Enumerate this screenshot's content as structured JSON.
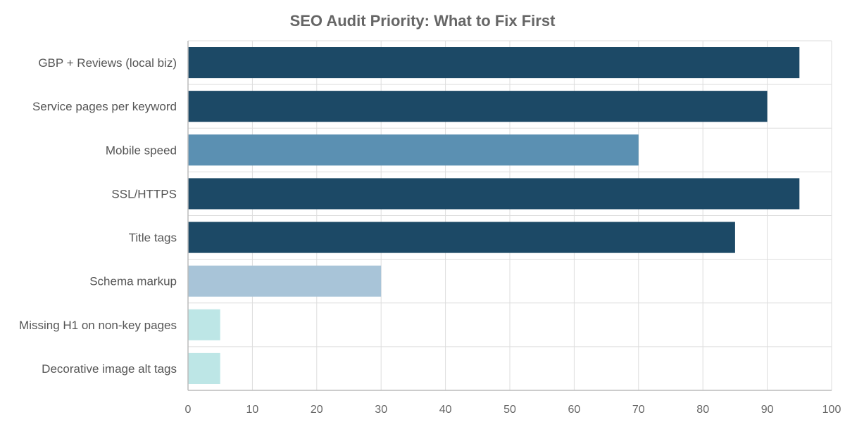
{
  "chart_data": {
    "type": "bar",
    "orientation": "horizontal",
    "title": "SEO Audit Priority: What to Fix First",
    "xlabel": "",
    "ylabel": "",
    "xlim": [
      0,
      100
    ],
    "x_ticks": [
      "0",
      "10",
      "20",
      "30",
      "40",
      "50",
      "60",
      "70",
      "80",
      "90",
      "100"
    ],
    "grid": true,
    "legend": "none",
    "categories": [
      "GBP + Reviews (local biz)",
      "Service pages per keyword",
      "Mobile speed",
      "SSL/HTTPS",
      "Title tags",
      "Schema markup",
      "Missing H1 on non-key pages",
      "Decorative image alt tags"
    ],
    "values": [
      95,
      90,
      70,
      95,
      85,
      30,
      5,
      5
    ],
    "bar_colors": [
      "#1c4966",
      "#1c4966",
      "#5b90b2",
      "#1c4966",
      "#1c4966",
      "#a8c4d8",
      "#bde6e6",
      "#bde6e6"
    ]
  }
}
